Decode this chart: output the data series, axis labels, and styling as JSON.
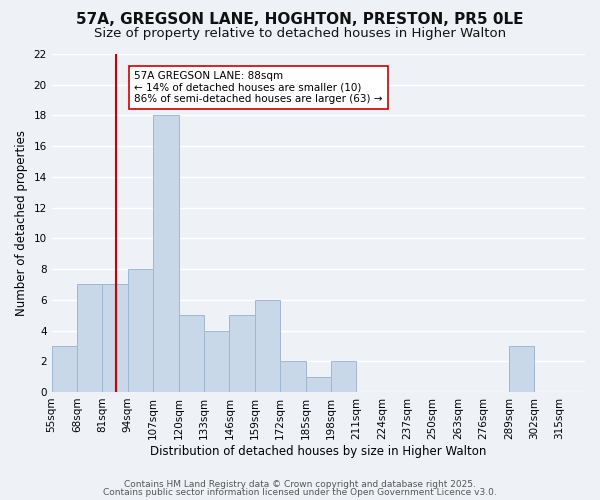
{
  "title": "57A, GREGSON LANE, HOGHTON, PRESTON, PR5 0LE",
  "subtitle": "Size of property relative to detached houses in Higher Walton",
  "xlabel": "Distribution of detached houses by size in Higher Walton",
  "ylabel": "Number of detached properties",
  "bin_labels": [
    "55sqm",
    "68sqm",
    "81sqm",
    "94sqm",
    "107sqm",
    "120sqm",
    "133sqm",
    "146sqm",
    "159sqm",
    "172sqm",
    "185sqm",
    "198sqm",
    "211sqm",
    "224sqm",
    "237sqm",
    "250sqm",
    "263sqm",
    "276sqm",
    "289sqm",
    "302sqm",
    "315sqm"
  ],
  "bin_edges": [
    55,
    68,
    81,
    94,
    107,
    120,
    133,
    146,
    159,
    172,
    185,
    198,
    211,
    224,
    237,
    250,
    263,
    276,
    289,
    302,
    315
  ],
  "bar_heights": [
    3,
    7,
    7,
    8,
    18,
    5,
    4,
    5,
    6,
    2,
    1,
    2,
    0,
    0,
    0,
    0,
    0,
    0,
    3,
    0
  ],
  "bar_color": "#c8d8e8",
  "bar_edge_color": "#a0b8d0",
  "vline_x": 88,
  "vline_color": "#cc0000",
  "ylim": [
    0,
    22
  ],
  "yticks": [
    0,
    2,
    4,
    6,
    8,
    10,
    12,
    14,
    16,
    18,
    20,
    22
  ],
  "annotation_title": "57A GREGSON LANE: 88sqm",
  "annotation_line1": "← 14% of detached houses are smaller (10)",
  "annotation_line2": "86% of semi-detached houses are larger (63) →",
  "footer1": "Contains HM Land Registry data © Crown copyright and database right 2025.",
  "footer2": "Contains public sector information licensed under the Open Government Licence v3.0.",
  "background_color": "#eef2f7",
  "plot_background_color": "#eef2f7",
  "grid_color": "#ffffff",
  "title_fontsize": 11,
  "subtitle_fontsize": 9.5,
  "axis_label_fontsize": 8.5,
  "tick_fontsize": 7.5,
  "footer_fontsize": 6.5
}
